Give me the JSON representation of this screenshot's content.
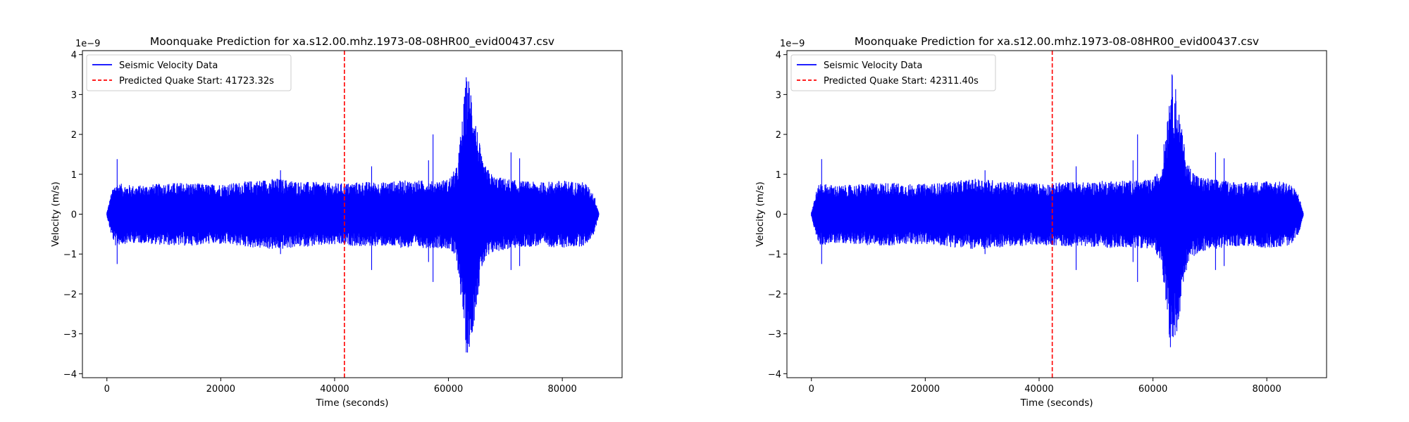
{
  "chart_data": [
    {
      "type": "line",
      "title": "Moonquake Prediction for xa.s12.00.mhz.1973-08-08HR00_evid00437.csv",
      "xlabel": "Time (seconds)",
      "ylabel": "Velocity (m/s)",
      "y_offset_label": "1e−9",
      "xlim": [
        -4300,
        90500
      ],
      "ylim": [
        -4.1,
        4.1
      ],
      "x_ticks": [
        0,
        20000,
        40000,
        60000,
        80000
      ],
      "x_tick_labels": [
        "0",
        "20000",
        "40000",
        "60000",
        "80000"
      ],
      "y_ticks": [
        -4,
        -3,
        -2,
        -1,
        0,
        1,
        2,
        3,
        4
      ],
      "y_tick_labels": [
        "−4",
        "−3",
        "−2",
        "−1",
        "0",
        "1",
        "2",
        "3",
        "4"
      ],
      "grid": false,
      "legend_position": "top-left",
      "series": [
        {
          "name": "Seismic Velocity Data",
          "color": "#0000ff",
          "x_range": [
            0,
            86400
          ],
          "envelope_x": [
            0,
            800,
            1500,
            2000,
            3000,
            5000,
            8000,
            10000,
            14000,
            18000,
            22000,
            26000,
            30000,
            34000,
            38000,
            40000,
            42000,
            45000,
            48000,
            52000,
            55000,
            58000,
            60000,
            61500,
            62500,
            63200,
            64000,
            65000,
            66000,
            68000,
            72000,
            76000,
            80000,
            84000,
            85600,
            86400
          ],
          "envelope_amp": [
            0.05,
            0.55,
            0.8,
            0.78,
            0.75,
            0.72,
            0.75,
            0.78,
            0.8,
            0.75,
            0.78,
            0.85,
            0.9,
            0.82,
            0.8,
            0.78,
            0.78,
            0.82,
            0.8,
            0.85,
            0.85,
            0.85,
            0.88,
            1.2,
            2.5,
            3.6,
            3.2,
            2.2,
            1.3,
            0.95,
            0.85,
            0.8,
            0.85,
            0.8,
            0.5,
            0.05
          ],
          "spikes": [
            [
              1800,
              1.38,
              -1.25
            ],
            [
              30500,
              1.1,
              -1.0
            ],
            [
              46500,
              1.2,
              -1.4
            ],
            [
              56500,
              1.35,
              -1.2
            ],
            [
              57300,
              2.0,
              -1.7
            ],
            [
              71000,
              1.55,
              -1.4
            ],
            [
              72500,
              1.4,
              -1.3
            ]
          ]
        },
        {
          "name": "Predicted Quake Start: 41723.32s",
          "color": "#ff0000",
          "style": "dashed",
          "x": 41723.32
        }
      ]
    },
    {
      "type": "line",
      "title": "Moonquake Prediction for xa.s12.00.mhz.1973-08-08HR00_evid00437.csv",
      "xlabel": "Time (seconds)",
      "ylabel": "Velocity (m/s)",
      "y_offset_label": "1e−9",
      "xlim": [
        -4300,
        90500
      ],
      "ylim": [
        -4.1,
        4.1
      ],
      "x_ticks": [
        0,
        20000,
        40000,
        60000,
        80000
      ],
      "x_tick_labels": [
        "0",
        "20000",
        "40000",
        "60000",
        "80000"
      ],
      "y_ticks": [
        -4,
        -3,
        -2,
        -1,
        0,
        1,
        2,
        3,
        4
      ],
      "y_tick_labels": [
        "−4",
        "−3",
        "−2",
        "−1",
        "0",
        "1",
        "2",
        "3",
        "4"
      ],
      "grid": false,
      "legend_position": "top-left",
      "series": [
        {
          "name": "Seismic Velocity Data",
          "color": "#0000ff",
          "x_range": [
            0,
            86400
          ],
          "envelope_x": [
            0,
            800,
            1500,
            2000,
            3000,
            5000,
            8000,
            10000,
            14000,
            18000,
            22000,
            26000,
            30000,
            34000,
            38000,
            40000,
            42000,
            45000,
            48000,
            52000,
            55000,
            58000,
            60000,
            61500,
            62500,
            63200,
            64000,
            65000,
            66000,
            68000,
            72000,
            76000,
            80000,
            84000,
            85600,
            86400
          ],
          "envelope_amp": [
            0.05,
            0.55,
            0.8,
            0.78,
            0.75,
            0.72,
            0.75,
            0.78,
            0.8,
            0.75,
            0.78,
            0.85,
            0.9,
            0.82,
            0.8,
            0.78,
            0.78,
            0.82,
            0.8,
            0.85,
            0.85,
            0.85,
            0.88,
            1.2,
            2.5,
            3.6,
            3.2,
            2.2,
            1.3,
            0.95,
            0.85,
            0.8,
            0.85,
            0.8,
            0.5,
            0.05
          ],
          "spikes": [
            [
              1800,
              1.38,
              -1.25
            ],
            [
              30500,
              1.1,
              -1.0
            ],
            [
              46500,
              1.2,
              -1.4
            ],
            [
              56500,
              1.35,
              -1.2
            ],
            [
              57300,
              2.0,
              -1.7
            ],
            [
              71000,
              1.55,
              -1.4
            ],
            [
              72500,
              1.4,
              -1.3
            ]
          ]
        },
        {
          "name": "Predicted Quake Start: 42311.40s",
          "color": "#ff0000",
          "style": "dashed",
          "x": 42311.4
        }
      ]
    }
  ]
}
